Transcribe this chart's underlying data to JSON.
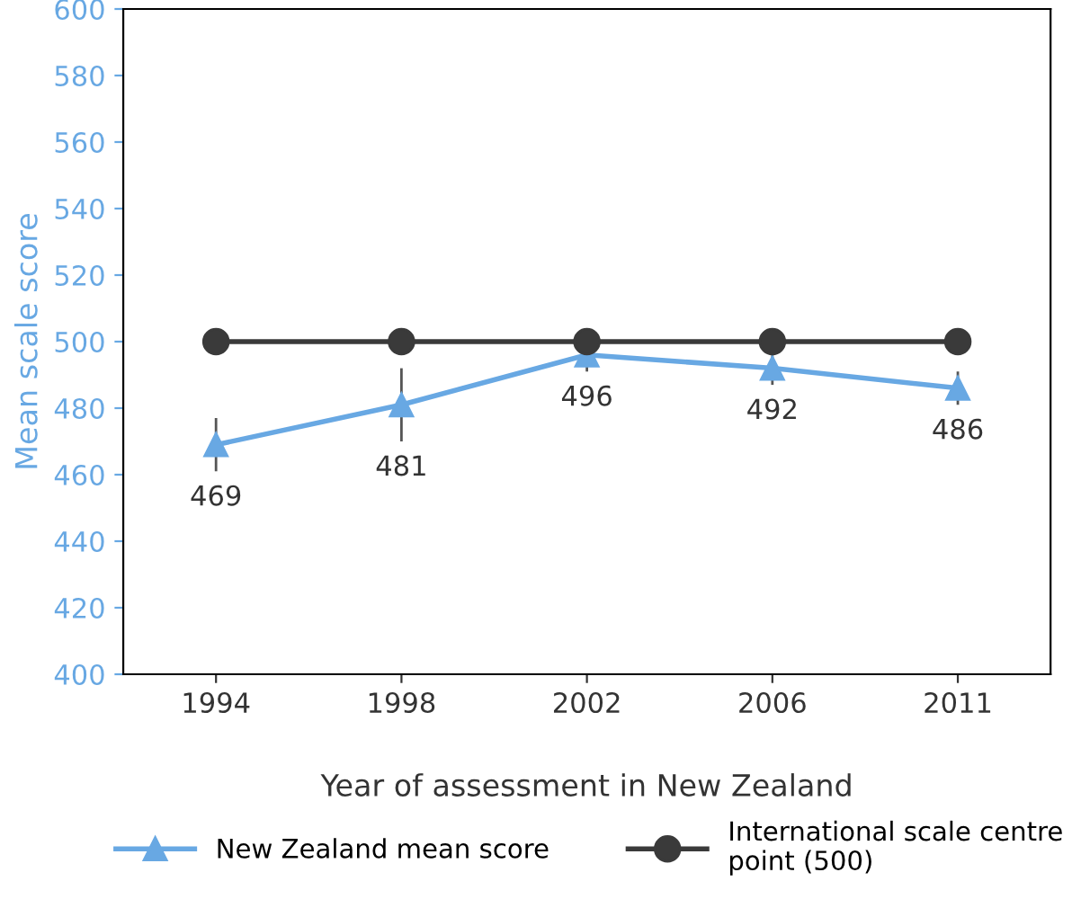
{
  "chart_data": {
    "type": "line",
    "xlabel": "Year of assessment in New Zealand",
    "ylabel": "Mean scale score",
    "categories": [
      "1994",
      "1998",
      "2002",
      "2006",
      "2011"
    ],
    "series": [
      {
        "name": "New Zealand mean score",
        "color": "#68a8e3",
        "values": [
          469,
          481,
          496,
          492,
          486
        ],
        "errors": [
          8,
          11,
          5,
          5,
          5
        ],
        "marker": "triangle",
        "value_labels": [
          "469",
          "481",
          "496",
          "492",
          "486"
        ]
      },
      {
        "name": "International scale centre point (500)",
        "color": "#3a3a3a",
        "values": [
          500,
          500,
          500,
          500,
          500
        ],
        "marker": "circle"
      }
    ],
    "ylim": [
      400,
      600
    ],
    "yticks": [
      400,
      420,
      440,
      460,
      480,
      500,
      520,
      540,
      560,
      580,
      600
    ],
    "legend": "bottom",
    "grid": false
  }
}
